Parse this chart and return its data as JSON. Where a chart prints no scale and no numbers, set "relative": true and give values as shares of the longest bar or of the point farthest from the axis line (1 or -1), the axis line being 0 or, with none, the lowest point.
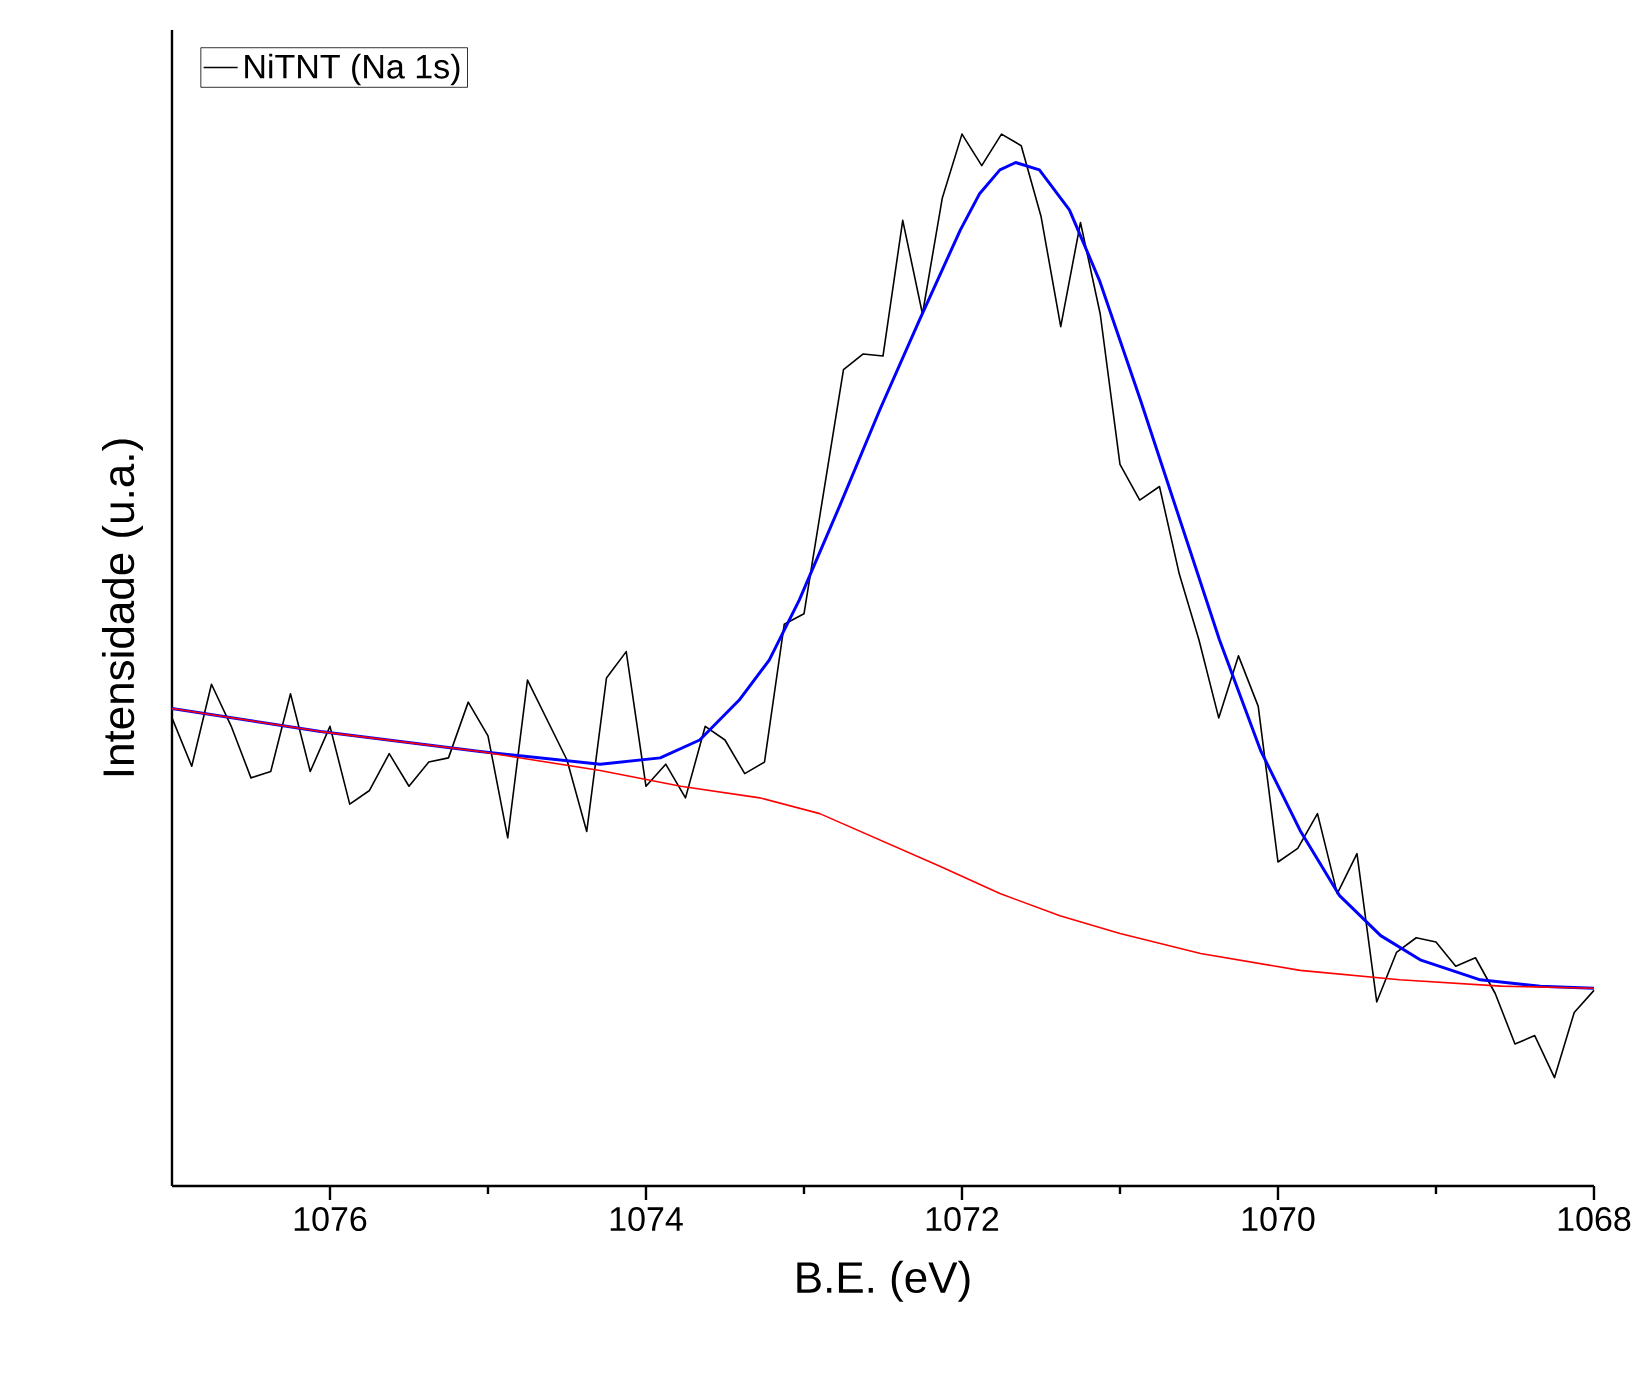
{
  "chart_data": {
    "type": "line",
    "xlabel": "B.E. (eV)",
    "ylabel": "Intensidade (u.a.)",
    "relative": true,
    "legend": "top left",
    "grid": false,
    "marker": "none",
    "line_style": "solid",
    "xlim": [
      1077,
      1068
    ],
    "xticks": [
      1076,
      1074,
      1072,
      1070,
      1068
    ],
    "series": [
      {
        "name": "NiTNT (Na 1s)",
        "color": "#000000",
        "x": [
          1077,
          1076.875,
          1076.75,
          1076.625,
          1076.5,
          1076.375,
          1076.25,
          1076.125,
          1076,
          1075.875,
          1075.75,
          1075.625,
          1075.5,
          1075.375,
          1075.25,
          1075.125,
          1075,
          1074.875,
          1074.75,
          1074.625,
          1074.5,
          1074.375,
          1074.25,
          1074.125,
          1074,
          1073.875,
          1073.75,
          1073.625,
          1073.5,
          1073.375,
          1073.25,
          1073.125,
          1073,
          1072.875,
          1072.75,
          1072.625,
          1072.5,
          1072.375,
          1072.25,
          1072.125,
          1072,
          1071.875,
          1071.75,
          1071.625,
          1071.5,
          1071.375,
          1071.25,
          1071.125,
          1071,
          1070.875,
          1070.75,
          1070.625,
          1070.5,
          1070.375,
          1070.25,
          1070.125,
          1070,
          1069.875,
          1069.75,
          1069.625,
          1069.5,
          1069.375,
          1069.25,
          1069.125,
          1069,
          1068.875,
          1068.75,
          1068.625,
          1068.5,
          1068.375,
          1068.25,
          1068.125,
          1068
        ],
        "values": [
          0.445,
          0.399,
          0.477,
          0.437,
          0.388,
          0.394,
          0.468,
          0.394,
          0.437,
          0.363,
          0.376,
          0.411,
          0.38,
          0.403,
          0.407,
          0.46,
          0.428,
          0.331,
          0.481,
          0.443,
          0.405,
          0.337,
          0.483,
          0.508,
          0.38,
          0.401,
          0.369,
          0.437,
          0.424,
          0.392,
          0.403,
          0.534,
          0.544,
          0.66,
          0.776,
          0.791,
          0.789,
          0.918,
          0.829,
          0.939,
          1.0,
          0.97,
          1.0,
          0.989,
          0.922,
          0.817,
          0.916,
          0.829,
          0.686,
          0.652,
          0.665,
          0.582,
          0.519,
          0.445,
          0.504,
          0.456,
          0.308,
          0.321,
          0.354,
          0.278,
          0.316,
          0.175,
          0.222,
          0.236,
          0.232,
          0.209,
          0.217,
          0.183,
          0.135,
          0.143,
          0.103,
          0.165,
          0.186
        ]
      },
      {
        "color": "#0000ff",
        "x": [
          1077,
          1076.06,
          1075.05,
          1074.29,
          1073.91,
          1073.66,
          1073.41,
          1073.22,
          1073.03,
          1072.77,
          1072.52,
          1072.27,
          1072.01,
          1071.89,
          1071.76,
          1071.66,
          1071.51,
          1071.32,
          1071.13,
          1070.87,
          1070.62,
          1070.37,
          1070.11,
          1069.86,
          1069.61,
          1069.35,
          1069.1,
          1068.72,
          1068.34,
          1068
        ],
        "values": [
          0.454,
          0.432,
          0.413,
          0.401,
          0.407,
          0.424,
          0.462,
          0.5,
          0.557,
          0.648,
          0.738,
          0.823,
          0.909,
          0.943,
          0.966,
          0.973,
          0.966,
          0.928,
          0.861,
          0.747,
          0.633,
          0.519,
          0.414,
          0.338,
          0.276,
          0.238,
          0.215,
          0.196,
          0.19,
          0.188
        ]
      },
      {
        "color": "#ff0000",
        "x": [
          1077,
          1076.06,
          1075.05,
          1074.29,
          1073.78,
          1073.28,
          1072.9,
          1072.52,
          1072.14,
          1071.76,
          1071.38,
          1071,
          1070.49,
          1069.86,
          1069.23,
          1068.59,
          1068
        ],
        "values": [
          0.454,
          0.432,
          0.413,
          0.395,
          0.38,
          0.369,
          0.354,
          0.329,
          0.304,
          0.278,
          0.257,
          0.24,
          0.221,
          0.205,
          0.196,
          0.19,
          0.188
        ]
      }
    ]
  }
}
